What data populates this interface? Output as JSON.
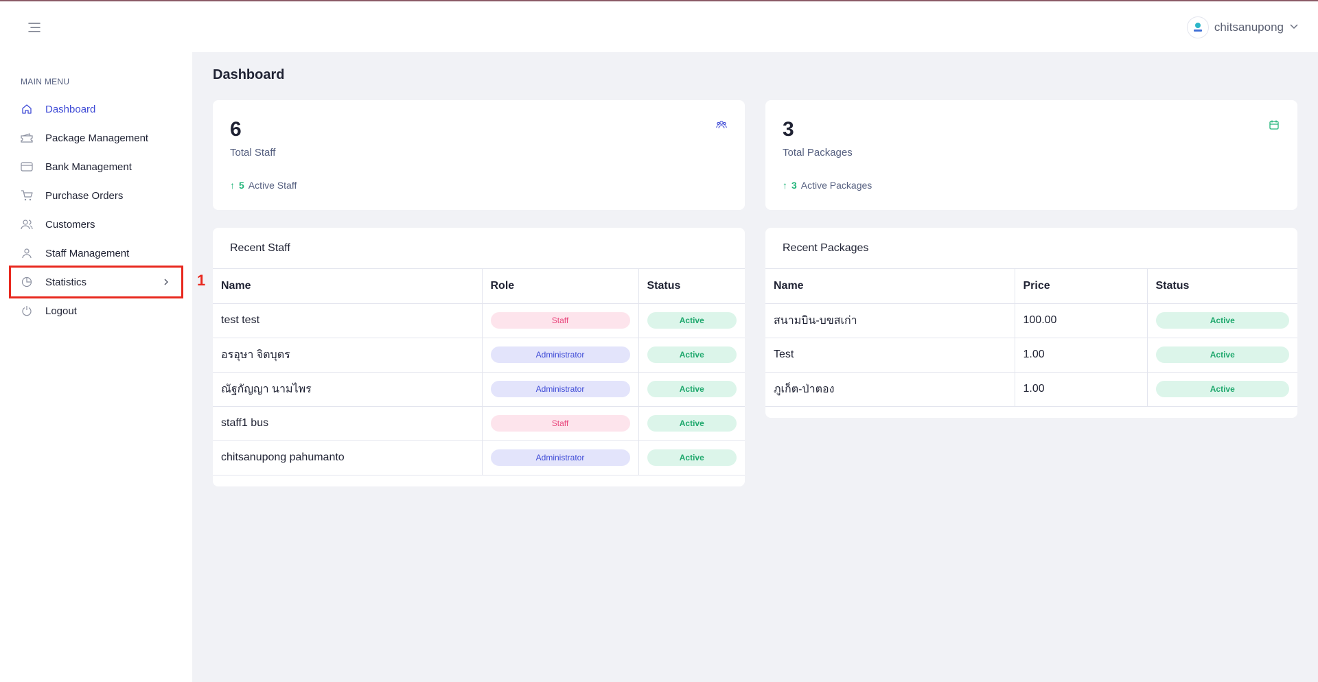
{
  "header": {
    "username": "chitsanupong"
  },
  "sidebar": {
    "heading": "MAIN MENU",
    "items": [
      {
        "label": "Dashboard"
      },
      {
        "label": "Package Management"
      },
      {
        "label": "Bank Management"
      },
      {
        "label": "Purchase Orders"
      },
      {
        "label": "Customers"
      },
      {
        "label": "Staff Management"
      },
      {
        "label": "Statistics"
      },
      {
        "label": "Logout"
      }
    ]
  },
  "annotation": {
    "number": "1"
  },
  "main": {
    "title": "Dashboard",
    "staff_card": {
      "value": "6",
      "label": "Total Staff",
      "sub_count": "5",
      "sub_label": "Active Staff"
    },
    "packages_card": {
      "value": "3",
      "label": "Total Packages",
      "sub_count": "3",
      "sub_label": "Active Packages"
    },
    "recent_staff": {
      "title": "Recent Staff",
      "columns": [
        "Name",
        "Role",
        "Status"
      ],
      "rows": [
        {
          "name": "test test",
          "role": "Staff",
          "status": "Active"
        },
        {
          "name": "อรอุษา จิตบุตร",
          "role": "Administrator",
          "status": "Active"
        },
        {
          "name": "ณัฐกัญญา นามไพร",
          "role": "Administrator",
          "status": "Active"
        },
        {
          "name": "staff1 bus",
          "role": "Staff",
          "status": "Active"
        },
        {
          "name": "chitsanupong pahumanto",
          "role": "Administrator",
          "status": "Active"
        }
      ]
    },
    "recent_packages": {
      "title": "Recent Packages",
      "columns": [
        "Name",
        "Price",
        "Status"
      ],
      "rows": [
        {
          "name": "สนามบิน-บขสเก่า",
          "price": "100.00",
          "status": "Active"
        },
        {
          "name": "Test",
          "price": "1.00",
          "status": "Active"
        },
        {
          "name": "ภูเก็ต-ป่าตอง",
          "price": "1.00",
          "status": "Active"
        }
      ]
    }
  },
  "colors": {
    "accent": "#3f4bd6",
    "success": "#22b57a",
    "staff_pink": "#e8467c",
    "highlight_red": "#e8281e"
  }
}
